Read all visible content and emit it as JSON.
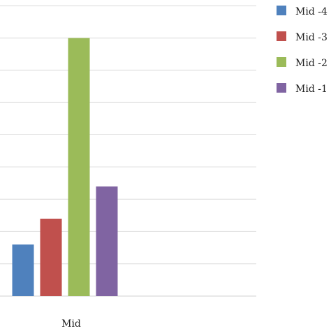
{
  "chart_data": {
    "type": "bar",
    "categories": [
      "Mid"
    ],
    "series": [
      {
        "name": "Mid -4",
        "values": [
          1.6
        ],
        "color": "#4F81BD"
      },
      {
        "name": "Mid -3",
        "values": [
          2.4
        ],
        "color": "#C0504D"
      },
      {
        "name": "Mid -2",
        "values": [
          8.0
        ],
        "color": "#9BBB59"
      },
      {
        "name": "Mid -1",
        "values": [
          3.4
        ],
        "color": "#8064A2"
      }
    ],
    "ylim": [
      0,
      9
    ],
    "grid": true,
    "legend": "right"
  }
}
